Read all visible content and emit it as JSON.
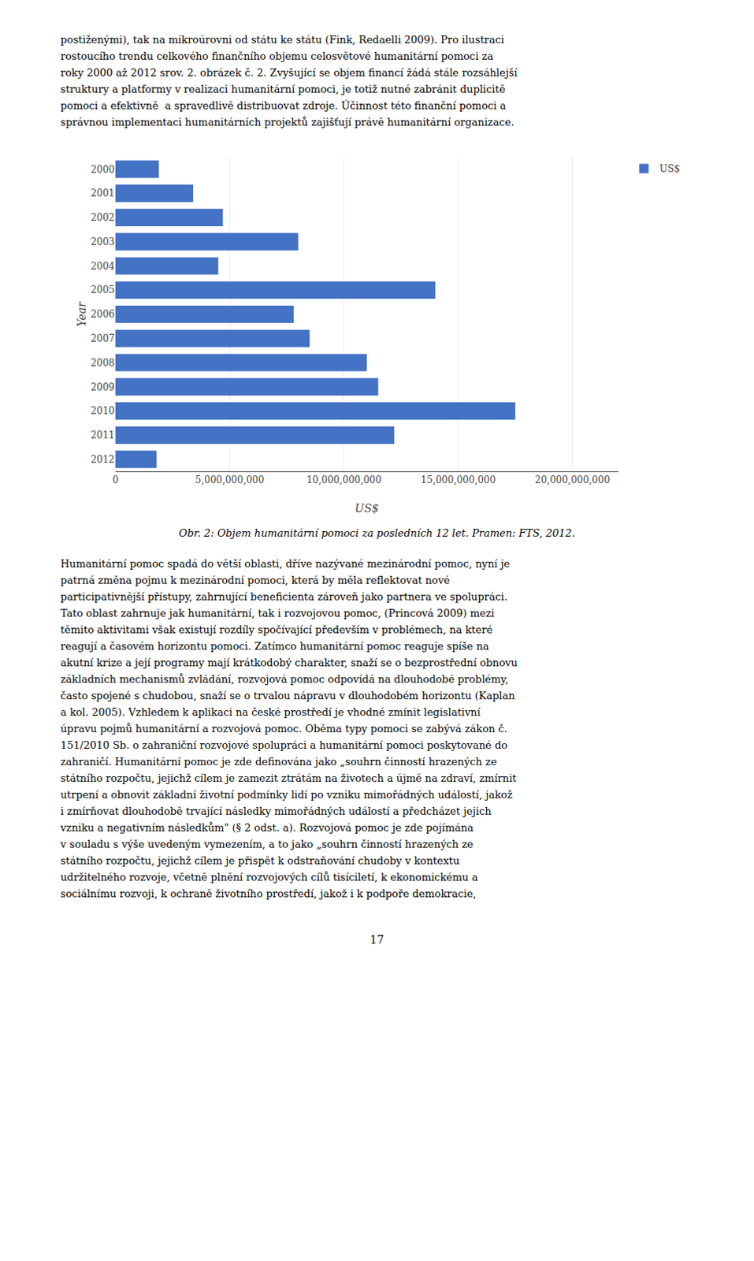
{
  "text_above": [
    "postiženými), tak na mikroúrovni od státu ke státu (Fink, Redaelli 2009). Pro ilustraci",
    "rostoucího trendu celkového finančního objemu celosvětové humanitární pomoci za",
    "roky 2000 až 2012 srov. 2. obrázek č. 2. Zvyšující se objem financí žádá stále rozsáhlejší",
    "struktury a platformy v realizaci humanitární pomoci, je totiž nutné zabránit duplicitě",
    "pomoci a efektivně  a spravedlivě distribuovat zdroje. Účinnost této finanční pomoci a",
    "správnou implementaci humanitárních projektů zajišťují právě humanitární organizace."
  ],
  "chart_data": {
    "type": "bar",
    "orientation": "horizontal",
    "categories": [
      "2000",
      "2001",
      "2002",
      "2003",
      "2004",
      "2005",
      "2006",
      "2007",
      "2008",
      "2009",
      "2010",
      "2011",
      "2012"
    ],
    "series": [
      {
        "name": "US$",
        "color": "#4472C4",
        "values": [
          1900000000,
          3400000000,
          4700000000,
          8000000000,
          4500000000,
          14000000000,
          7800000000,
          8500000000,
          11000000000,
          11500000000,
          17500000000,
          12200000000,
          1800000000
        ]
      }
    ],
    "xlabel": "US$",
    "ylabel": "Year",
    "xlim": [
      0,
      22000000000
    ],
    "xticks": [
      0,
      {
        "value": 5000000000,
        "label": "5,000,000,000"
      },
      {
        "value": 10000000000,
        "label": "10,000,000,000"
      },
      {
        "value": 15000000000,
        "label": "15,000,000,000"
      },
      {
        "value": 20000000000,
        "label": "20,000,000,000"
      }
    ],
    "grid": true,
    "legend": "upper right"
  },
  "caption": "Obr. 2: Objem humanitární pomoci za posledních 12 let. Pramen: FTS, 2012.",
  "text_below": [
    "Humanitární pomoc spadá do větší oblasti, dříve nazývané mezinárodní pomoc, nyní je",
    "patrná změna pojmu k mezinárodní pomoci, která by měla reflektovat nové",
    "participativnější přístupy, zahrnující beneficienta zároveň jako partnera ve spolupráci.",
    "Tato oblast zahrnuje jak humanitární, tak i rozvojovou pomoc, (Princová 2009) mezi",
    "těmito aktivitami však existují rozdíly spočívající především v problémech, na které",
    "reagují a časovém horizontu pomoci. Zatímco humanitární pomoc reaguje spíše na",
    "akutní krize a její programy mají krátkodobý charakter, snaží se o bezprostřední obnovu",
    "základních mechanismů zvládání, rozvojová pomoc odpovídá na dlouhodobé problémy,",
    "často spojené s chudobou, snaží se o trvalou nápravu v dlouhodobém horizontu (Kaplan",
    "a kol. 2005). Vzhledem k aplikaci na české prostředí je vhodné zmínit legislativní",
    "úpravu pojmů humanitární a rozvojová pomoc. Oběma typy pomoci se zabývá zákon č.",
    "151/2010 Sb. o zahraniční rozvojové spolupráci a humanitární pomoci poskytované do",
    "zahraničí. Humanitární pomoc je zde definována jako „souhrn činností hrazených ze",
    "státního rozpočtu, jejichž cílem je zamezit ztrátám na životech a újmě na zdraví, zmírnit",
    "utrpení a obnovit základní životní podmínky lidí po vzniku mimořádných událostí, jakož",
    "i zmírňovat dlouhodobě trvající následky mimořádných událostí a předcházet jejich",
    "vzniku a negativním následkům\" (§ 2 odst. a). Rozvojová pomoc je zde pojímána",
    "v souladu s výše uvedeným vymezením, a to jako „souhrn činností hrazených ze",
    "státního rozpočtu, jejichž cílem je přispět k odstraňování chudoby v kontextu",
    "udržitelného rozvoje, včetně plnění rozvojových cílů tisíciletí, k ekonomickému a",
    "sociálnímu rozvoji, k ochraně životního prostředí, jakož i k podpoře demokracie,"
  ],
  "page_number": "17"
}
